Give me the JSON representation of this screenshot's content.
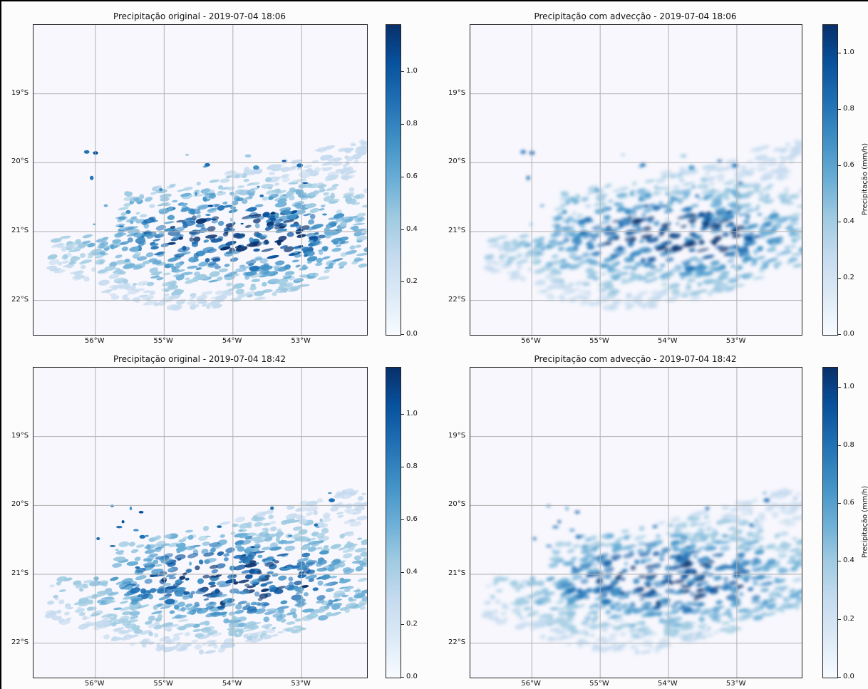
{
  "figure": {
    "panels": [
      {
        "id": "orig-1806",
        "title": "Precipitação original - 2019-07-04 18:06",
        "colorbar_ticks": [
          "0.0",
          "0.2",
          "0.4",
          "0.6",
          "0.8",
          "1.0"
        ],
        "colorbar_max": 1.18,
        "colorbar_label": "",
        "smooth": false,
        "time_shift": 0
      },
      {
        "id": "adv-1806",
        "title": "Precipitação com advecção - 2019-07-04 18:06",
        "colorbar_ticks": [
          "0.0",
          "0.2",
          "0.4",
          "0.6",
          "0.8",
          "1.0"
        ],
        "colorbar_max": 1.1,
        "colorbar_label": "Precipitação (mm/h)",
        "smooth": true,
        "time_shift": 0
      },
      {
        "id": "orig-1842",
        "title": "Precipitação original - 2019-07-04 18:42",
        "colorbar_ticks": [
          "0.0",
          "0.2",
          "0.4",
          "0.6",
          "0.8",
          "1.0"
        ],
        "colorbar_max": 1.18,
        "colorbar_label": "",
        "smooth": false,
        "time_shift": 1
      },
      {
        "id": "adv-1842",
        "title": "Precipitação com advecção - 2019-07-04 18:42",
        "colorbar_ticks": [
          "0.0",
          "0.2",
          "0.4",
          "0.6",
          "0.8",
          "1.0"
        ],
        "colorbar_max": 1.07,
        "colorbar_label": "Precipitação (mm/h)",
        "smooth": true,
        "time_shift": 1
      }
    ],
    "lon_ticks": [
      "56°W",
      "55°W",
      "54°W",
      "53°W"
    ],
    "lat_ticks": [
      "19°S",
      "20°S",
      "21°S",
      "22°S"
    ],
    "extent": {
      "lon": [
        -56.9,
        -52.05
      ],
      "lat": [
        -22.5,
        -18.0
      ]
    },
    "colormap": [
      "#f7fbff",
      "#deebf7",
      "#c6dbef",
      "#9ecae1",
      "#6baed6",
      "#4292c6",
      "#2171b5",
      "#08519c",
      "#08306b"
    ],
    "grid_color": "#b0b0b0",
    "background_color": "#f7f7fd"
  }
}
